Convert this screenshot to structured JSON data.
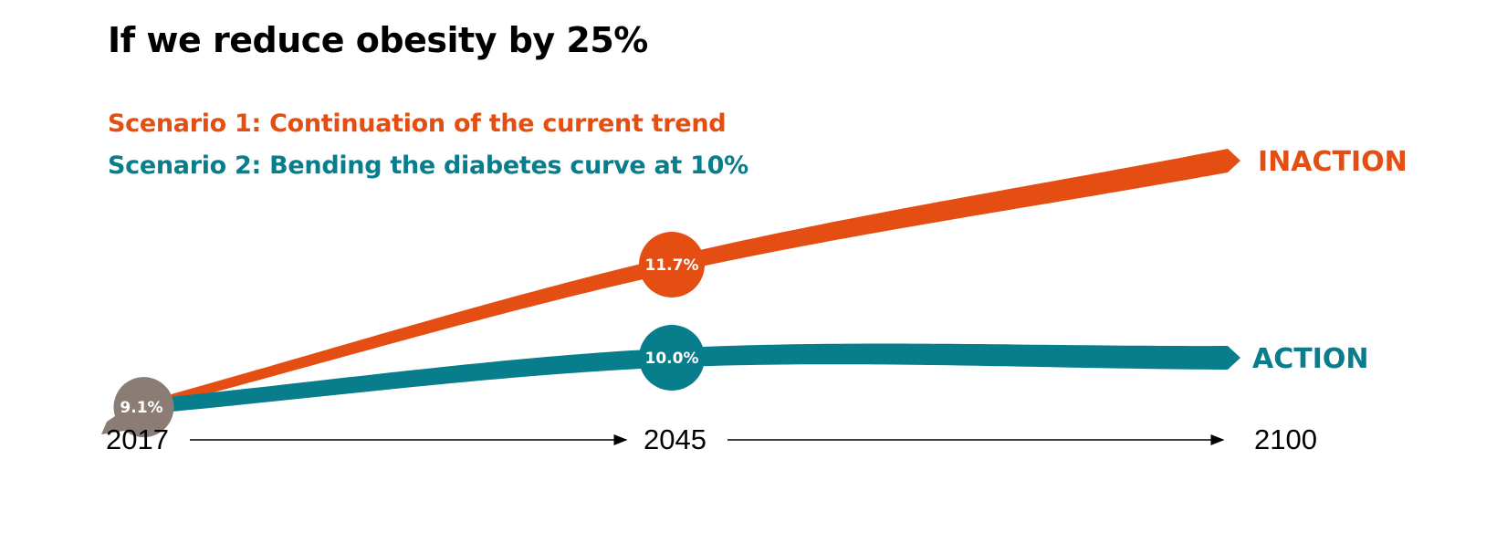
{
  "chart_data": {
    "type": "line",
    "title": "If we reduce obesity by 25%",
    "x": [
      "2017",
      "2045",
      "2100"
    ],
    "series": [
      {
        "name": "Scenario  1: Continuation of the current trend",
        "end_label": "INACTION",
        "color": "#e44e12",
        "points": [
          {
            "x": "2017",
            "value": 9.1,
            "label": "9.1%"
          },
          {
            "x": "2045",
            "value": 11.7,
            "label": "11.7%"
          },
          {
            "x": "2100",
            "value": 13.6
          }
        ]
      },
      {
        "name": "Scenario 2: Bending the diabetes curve at 10%",
        "end_label": "ACTION",
        "color": "#087d8c",
        "points": [
          {
            "x": "2017",
            "value": 9.1,
            "label": "9.1%"
          },
          {
            "x": "2045",
            "value": 10.0,
            "label": "10.0%"
          },
          {
            "x": "2100",
            "value": 10.0
          }
        ]
      }
    ],
    "start_label": "9.1%",
    "start_color": "#8b7d76",
    "ylim": [
      8.2,
      14.2
    ],
    "grid": false,
    "legend": "top-left"
  }
}
